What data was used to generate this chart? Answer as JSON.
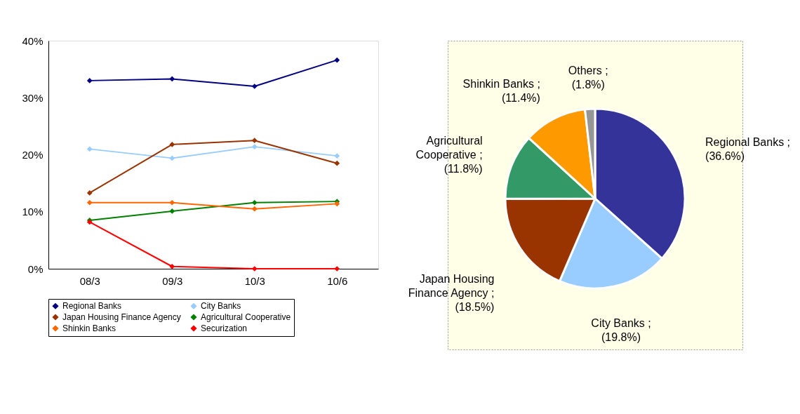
{
  "chart_data": [
    {
      "type": "line",
      "categories": [
        "08/3",
        "09/3",
        "10/3",
        "10/6"
      ],
      "ylim": [
        0,
        40
      ],
      "yticks": [
        {
          "value": 0,
          "label": "0%"
        },
        {
          "value": 10,
          "label": "10%"
        },
        {
          "value": 20,
          "label": "20%"
        },
        {
          "value": 30,
          "label": "30%"
        },
        {
          "value": 40,
          "label": "40%"
        }
      ],
      "grid": false,
      "legend": "bottom",
      "marker": "diamond",
      "line_style": "solid",
      "series": [
        {
          "name": "Regional Banks",
          "color": "#000080",
          "values": [
            33.0,
            33.3,
            32.0,
            36.6
          ]
        },
        {
          "name": "City Banks",
          "color": "#99ccff",
          "values": [
            21.0,
            19.4,
            21.4,
            19.8
          ]
        },
        {
          "name": "Japan Housing Finance Agency",
          "color": "#993300",
          "values": [
            13.3,
            21.8,
            22.5,
            18.5
          ]
        },
        {
          "name": "Agricultural Cooperative",
          "color": "#008000",
          "values": [
            8.5,
            10.1,
            11.6,
            11.8
          ]
        },
        {
          "name": "Shinkin Banks",
          "color": "#ff6600",
          "values": [
            11.6,
            11.6,
            10.5,
            11.4
          ]
        },
        {
          "name": "Securization",
          "color": "#ff0000",
          "values": [
            8.2,
            0.4,
            0,
            0
          ]
        }
      ]
    },
    {
      "type": "pie",
      "categories": [
        "Regional Banks",
        "City Banks",
        "Japan Housing Finance Agency",
        "Agricultural Cooperative",
        "Shinkin Banks",
        "Others"
      ],
      "values": [
        36.6,
        19.8,
        18.5,
        11.8,
        11.4,
        1.8
      ],
      "colors": [
        "#333399",
        "#99ccff",
        "#993300",
        "#339966",
        "#ff9900",
        "#969696"
      ],
      "value_labels": [
        "; (36.6%)",
        "; (19.8%)",
        "; (18.5%)",
        "; (11.8%)",
        "; (11.4%)",
        "; (1.8%)"
      ]
    }
  ]
}
